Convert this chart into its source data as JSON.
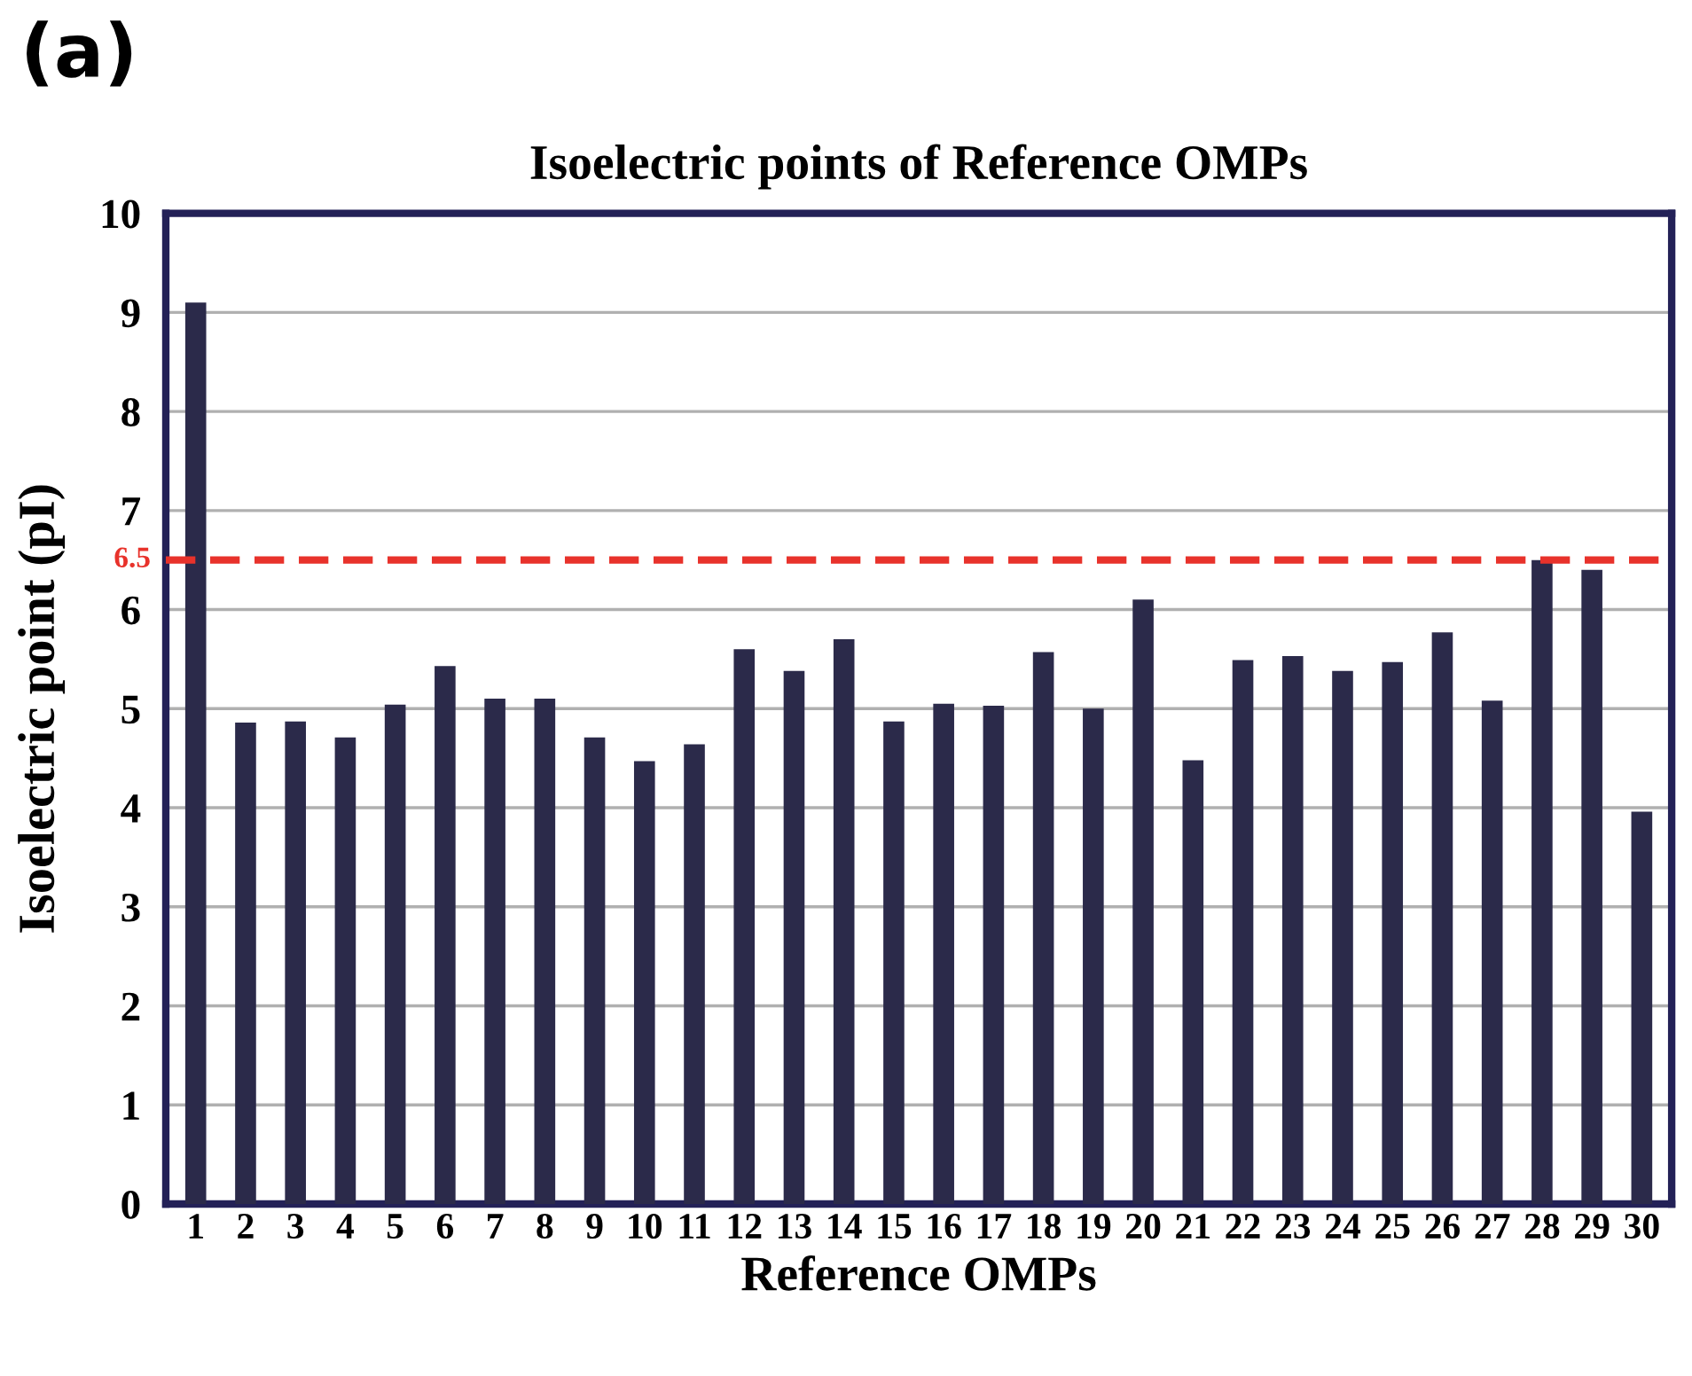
{
  "chart_data": {
    "type": "bar",
    "title": "Isoelectric points of Reference OMPs",
    "xlabel": "Reference OMPs",
    "ylabel": "Isoelectric point (pI)",
    "annotations": [
      "(a)"
    ],
    "categories": [
      "1",
      "2",
      "3",
      "4",
      "5",
      "6",
      "7",
      "8",
      "9",
      "10",
      "11",
      "12",
      "13",
      "14",
      "15",
      "16",
      "17",
      "18",
      "19",
      "20",
      "21",
      "22",
      "23",
      "24",
      "25",
      "26",
      "27",
      "28",
      "29",
      "30"
    ],
    "values": [
      9.1,
      4.86,
      4.87,
      4.71,
      5.04,
      5.43,
      5.1,
      5.1,
      4.71,
      4.47,
      4.64,
      5.6,
      5.38,
      5.7,
      4.87,
      5.05,
      5.03,
      5.57,
      5.0,
      6.1,
      4.48,
      5.49,
      5.53,
      5.38,
      5.47,
      5.77,
      5.08,
      6.5,
      6.4,
      3.96
    ],
    "color": "#2b2a4a",
    "ylim": [
      0,
      10
    ],
    "yticks": [
      0,
      1,
      2,
      3,
      4,
      5,
      6,
      7,
      8,
      9,
      10
    ],
    "grid": "y",
    "ref_lines": [
      {
        "axis": "y",
        "value": 6.5,
        "label": "6.5",
        "color": "#e8322b",
        "line_style": "dashed"
      }
    ]
  }
}
